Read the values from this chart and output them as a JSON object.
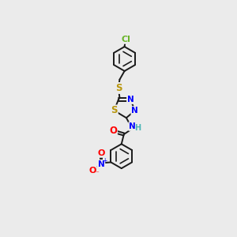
{
  "background_color": "#ebebeb",
  "bond_color": "#1a1a1a",
  "atom_colors": {
    "S": "#b8960c",
    "N": "#0000ff",
    "O": "#ff0000",
    "Cl": "#6ab52b",
    "H": "#4ab5b5",
    "C": "#1a1a1a"
  },
  "lw": 1.4,
  "fontsize": 7.5
}
